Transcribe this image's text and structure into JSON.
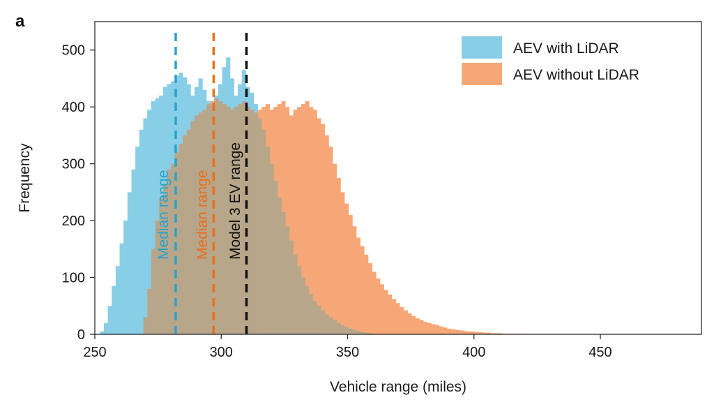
{
  "chart_data": {
    "type": "histogram",
    "panel_label": "a",
    "xlabel": "Vehicle range (miles)",
    "ylabel": "Frequency",
    "xlim": [
      250,
      490
    ],
    "ylim": [
      0,
      550
    ],
    "xticks": [
      250,
      300,
      350,
      400,
      450
    ],
    "yticks": [
      0,
      100,
      200,
      300,
      400,
      500
    ],
    "bin_width": 1.56,
    "colors": {
      "with_lidar": "#87cee6",
      "without_lidar": "#f6a777",
      "median_with": "#2aa3cc",
      "median_without": "#e8701e",
      "model3": "#111111",
      "overlap": "#b7a68a"
    },
    "legend": {
      "position": "top-right",
      "entries": [
        "AEV with LiDAR",
        "AEV without LiDAR"
      ]
    },
    "series": [
      {
        "name": "AEV with LiDAR",
        "bin_start": 252.0,
        "values": [
          5,
          20,
          50,
          85,
          120,
          160,
          200,
          250,
          290,
          330,
          360,
          380,
          395,
          410,
          415,
          420,
          435,
          440,
          445,
          455,
          460,
          452,
          440,
          420,
          435,
          450,
          430,
          410,
          405,
          420,
          440,
          470,
          487,
          450,
          420,
          440,
          465,
          435,
          425,
          405,
          380,
          360,
          330,
          300,
          270,
          240,
          215,
          190,
          165,
          140,
          120,
          100,
          85,
          70,
          58,
          50,
          42,
          35,
          30,
          25,
          20,
          16,
          13,
          10,
          8,
          6,
          4,
          3,
          2,
          1
        ]
      },
      {
        "name": "AEV without LiDAR",
        "bin_start": 269.2,
        "values": [
          30,
          80,
          150,
          200,
          240,
          265,
          290,
          300,
          320,
          335,
          350,
          360,
          375,
          385,
          390,
          395,
          405,
          410,
          415,
          410,
          405,
          400,
          395,
          400,
          405,
          410,
          400,
          395,
          390,
          395,
          400,
          405,
          395,
          400,
          405,
          410,
          400,
          385,
          395,
          400,
          405,
          410,
          400,
          395,
          380,
          370,
          350,
          330,
          300,
          275,
          250,
          230,
          210,
          190,
          170,
          155,
          140,
          125,
          110,
          98,
          88,
          78,
          70,
          62,
          55,
          48,
          42,
          37,
          32,
          28,
          25,
          22,
          20,
          18,
          16,
          14,
          12,
          10,
          9,
          8,
          7,
          6,
          5,
          5,
          4,
          4,
          3,
          3,
          2,
          2,
          2,
          1,
          1,
          1,
          1,
          1,
          1
        ]
      }
    ],
    "reference_lines": [
      {
        "label": "Median range",
        "x": 282,
        "color_key": "median_with"
      },
      {
        "label": "Median range",
        "x": 297,
        "color_key": "median_without"
      },
      {
        "label": "Model 3 EV range",
        "x": 310,
        "color_key": "model3"
      }
    ]
  }
}
